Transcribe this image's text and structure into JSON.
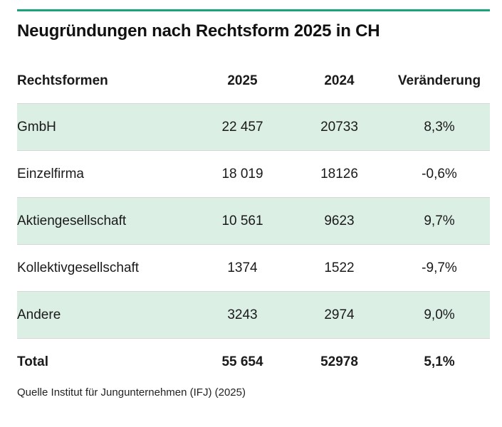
{
  "title": "Neugründungen nach Rechtsform 2025 in CH",
  "table": {
    "headers": [
      "Rechtsformen",
      "2025",
      "2024",
      "Veränderung"
    ],
    "rows": [
      [
        "GmbH",
        "22 457",
        "20733",
        "8,3%"
      ],
      [
        "Einzelfirma",
        "18 019",
        "18126",
        "-0,6%"
      ],
      [
        "Aktiengesellschaft",
        "10 561",
        "9623",
        "9,7%"
      ],
      [
        "Kollektivgesellschaft",
        "1374",
        "1522",
        "-9,7%"
      ],
      [
        "Andere",
        "3243",
        "2974",
        "9,0%"
      ]
    ],
    "total": [
      "Total",
      "55 654",
      "52978",
      "5,1%"
    ]
  },
  "source": "Quelle Institut für Jungunternehmen (IFJ) (2025)",
  "colors": {
    "accent_rule": "#1aa37a",
    "row_shading": "#dcefe4"
  }
}
